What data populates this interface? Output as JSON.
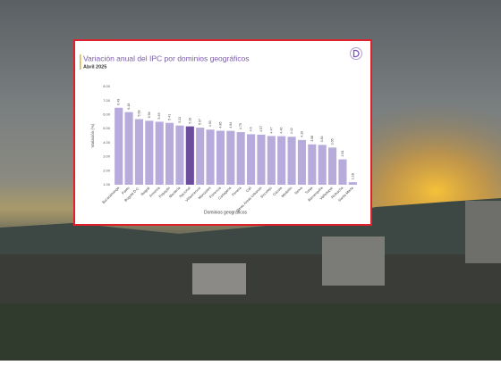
{
  "chart_data": {
    "type": "bar",
    "title": "Variación anual del IPC por dominios geográficos",
    "subtitle": "Abril 2025",
    "y_label": "Variación (%)",
    "x_label": "Dominios geográficos",
    "categories": [
      "Bucaramanga",
      "Pasto",
      "Bogotá D.C.",
      "Ibagué",
      "Armenia",
      "Popayán",
      "Montería",
      "Nacional",
      "Villavicencio",
      "Manizales",
      "Florencia",
      "Cartagena",
      "Pereira",
      "Cali",
      "Otras Áreas Urbanas",
      "Sincelejo",
      "Cúcuta",
      "Medellín",
      "Neiva",
      "Tunja",
      "Barranquilla",
      "Valledupar",
      "Riohacha",
      "Santa Marta"
    ],
    "values": [
      6.49,
      6.18,
      5.68,
      5.56,
      5.49,
      5.41,
      5.22,
      5.16,
      5.07,
      4.93,
      4.85,
      4.84,
      4.75,
      4.6,
      4.57,
      4.47,
      4.46,
      4.42,
      4.19,
      3.88,
      3.84,
      3.65,
      2.81,
      1.18
    ],
    "colors": [
      "#b7abdb",
      "#b7abdb",
      "#b7abdb",
      "#b7abdb",
      "#b7abdb",
      "#b7abdb",
      "#b7abdb",
      "#6b4c9e",
      "#b7abdb",
      "#b7abdb",
      "#b7abdb",
      "#b7abdb",
      "#b7abdb",
      "#b7abdb",
      "#b7abdb",
      "#b7abdb",
      "#b7abdb",
      "#b7abdb",
      "#b7abdb",
      "#b7abdb",
      "#b7abdb",
      "#b7abdb",
      "#b7abdb",
      "#b7abdb"
    ],
    "ylim": [
      1,
      8
    ],
    "yticks": [
      {
        "value": 1,
        "label": "1.00"
      },
      {
        "value": 2,
        "label": "2.00"
      },
      {
        "value": 3,
        "label": "3.00"
      },
      {
        "value": 4,
        "label": "4.00"
      },
      {
        "value": 5,
        "label": "5.00"
      },
      {
        "value": 6,
        "label": "6.00"
      },
      {
        "value": 7,
        "label": "7.00"
      },
      {
        "value": 8,
        "label": "8.00"
      }
    ],
    "grid": false
  }
}
